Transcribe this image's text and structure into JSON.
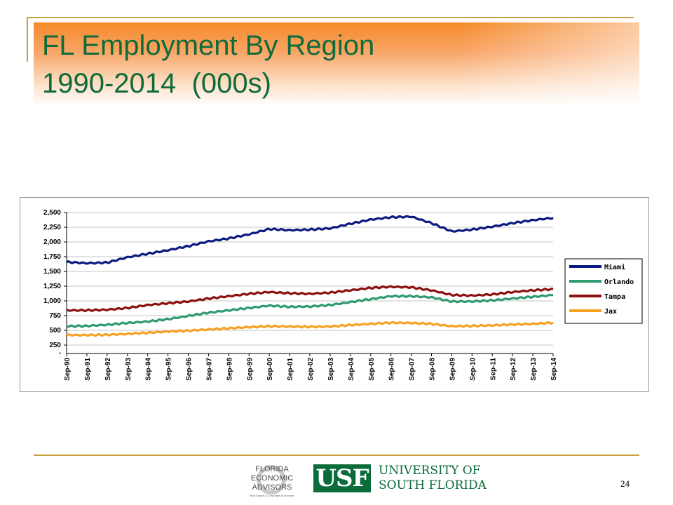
{
  "slide": {
    "title_line1": "FL Employment By Region",
    "title_line2": "1990-2014  (000s)",
    "page_number": "24"
  },
  "logos": {
    "fea_lines": [
      "FLORIDA",
      "ECONOMIC",
      "ADVISORS"
    ],
    "fea_tagline": "Real Estate & Corporate Economics",
    "usf_mark": "USF",
    "usf_name_line1": "UNIVERSITY OF",
    "usf_name_line2": "SOUTH FLORIDA"
  },
  "chart_data": {
    "type": "line",
    "title": "",
    "xlabel": "",
    "ylabel": "",
    "ylim": [
      250,
      2500
    ],
    "y_ticks": [
      250,
      500,
      750,
      1000,
      1250,
      1500,
      1750,
      2000,
      2250,
      2500
    ],
    "y_tick_labels": [
      "250",
      "500",
      "750",
      "1,000",
      "1,250",
      "1,500",
      "1,750",
      "2,000",
      "2,250",
      "2,500"
    ],
    "y_axis_bottom_label": "-",
    "x_labels": [
      "Sep-90",
      "Sep-91",
      "Sep-92",
      "Sep-93",
      "Sep-94",
      "Sep-95",
      "Sep-96",
      "Sep-97",
      "Sep-98",
      "Sep-99",
      "Sep-00",
      "Sep-01",
      "Sep-02",
      "Sep-03",
      "Sep-04",
      "Sep-05",
      "Sep-06",
      "Sep-07",
      "Sep-08",
      "Sep-09",
      "Sep-10",
      "Sep-11",
      "Sep-12",
      "Sep-13",
      "Sep-14"
    ],
    "grid": true,
    "legend_position": "right",
    "series": [
      {
        "name": "Miami",
        "color": "#0d1a80",
        "values": [
          1660,
          1640,
          1650,
          1740,
          1800,
          1860,
          1930,
          2010,
          2060,
          2130,
          2220,
          2200,
          2210,
          2230,
          2310,
          2380,
          2420,
          2430,
          2320,
          2180,
          2210,
          2260,
          2320,
          2370,
          2410
        ]
      },
      {
        "name": "Orlando",
        "color": "#2e9a6e",
        "values": [
          570,
          575,
          595,
          625,
          650,
          690,
          745,
          800,
          840,
          880,
          920,
          900,
          905,
          930,
          980,
          1030,
          1080,
          1080,
          1060,
          990,
          990,
          1010,
          1040,
          1070,
          1100
        ]
      },
      {
        "name": "Tampa",
        "color": "#8c1010",
        "values": [
          840,
          840,
          850,
          880,
          930,
          960,
          990,
          1040,
          1080,
          1120,
          1150,
          1130,
          1120,
          1140,
          1180,
          1220,
          1240,
          1230,
          1180,
          1100,
          1090,
          1110,
          1150,
          1180,
          1200
        ]
      },
      {
        "name": "Jax",
        "color": "#f7a123",
        "values": [
          420,
          420,
          425,
          440,
          460,
          480,
          495,
          515,
          535,
          555,
          570,
          565,
          560,
          565,
          590,
          610,
          630,
          625,
          610,
          570,
          575,
          585,
          600,
          610,
          630
        ]
      }
    ]
  }
}
